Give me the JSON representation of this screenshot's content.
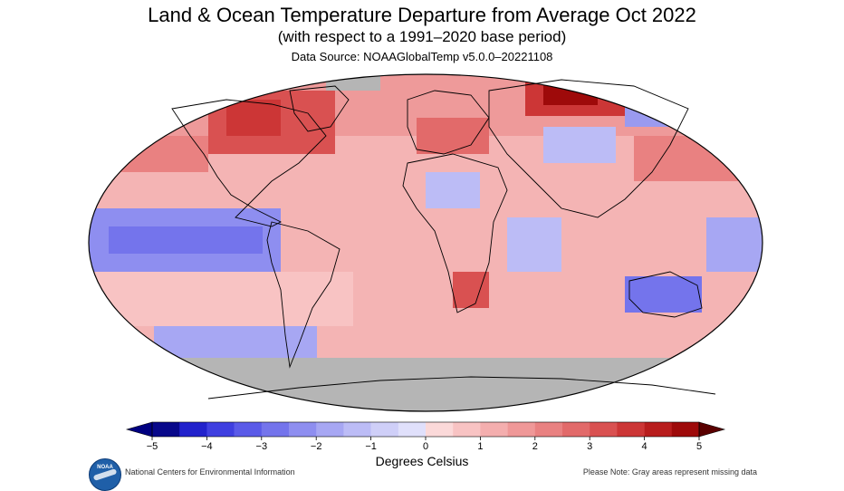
{
  "header": {
    "title": "Land & Ocean Temperature Departure from Average Oct 2022",
    "subtitle": "(with respect to a 1991–2020 base period)",
    "source": "Data Source: NOAAGlobalTemp v5.0.0–20221108"
  },
  "colorbar": {
    "ticks": [
      "−5",
      "−4",
      "−3",
      "−2",
      "−1",
      "0",
      "1",
      "2",
      "3",
      "4",
      "5"
    ],
    "min": -5,
    "max": 5,
    "step": 0.5,
    "label": "Degrees Celsius",
    "colors": [
      "#08088a",
      "#2222cc",
      "#3f3fe0",
      "#5a5ae8",
      "#7474ec",
      "#8e8ef0",
      "#a7a7f3",
      "#bcbcf6",
      "#cfcff8",
      "#e0e0fb",
      "#fbd9d9",
      "#f8c3c3",
      "#f4aeae",
      "#ef9898",
      "#e98181",
      "#e26a6a",
      "#d95151",
      "#cc3636",
      "#b81d1d",
      "#9e0a0a"
    ],
    "under_color": "#000080",
    "over_color": "#5a0000"
  },
  "map": {
    "no_data_color": "#b5b5b5",
    "land_outline_color": "#000000"
  },
  "logo": {
    "text": "NOAA"
  },
  "footer": {
    "left": "National Centers for Environmental Information",
    "right": "Please Note: Gray areas represent missing data"
  }
}
